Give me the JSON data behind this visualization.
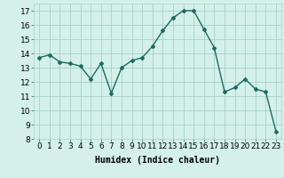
{
  "x": [
    0,
    1,
    2,
    3,
    4,
    5,
    6,
    7,
    8,
    9,
    10,
    11,
    12,
    13,
    14,
    15,
    16,
    17,
    18,
    19,
    20,
    21,
    22,
    23
  ],
  "y": [
    13.7,
    13.9,
    13.4,
    13.3,
    13.1,
    12.2,
    13.3,
    11.2,
    13.0,
    13.5,
    13.7,
    14.5,
    15.6,
    16.5,
    17.0,
    17.0,
    15.7,
    14.4,
    11.3,
    11.6,
    12.2,
    11.5,
    11.3,
    8.5
  ],
  "line_color": "#1a6b5e",
  "marker": "D",
  "marker_size": 2.0,
  "bg_color": "#d4f0eb",
  "grid_color": "#aacfc8",
  "xlabel": "Humidex (Indice chaleur)",
  "ylim": [
    8,
    17.5
  ],
  "xlim": [
    -0.5,
    23.5
  ],
  "yticks": [
    8,
    9,
    10,
    11,
    12,
    13,
    14,
    15,
    16,
    17
  ],
  "xticks": [
    0,
    1,
    2,
    3,
    4,
    5,
    6,
    7,
    8,
    9,
    10,
    11,
    12,
    13,
    14,
    15,
    16,
    17,
    18,
    19,
    20,
    21,
    22,
    23
  ],
  "xlabel_fontsize": 7,
  "tick_fontsize": 6.5,
  "line_width": 1.0
}
